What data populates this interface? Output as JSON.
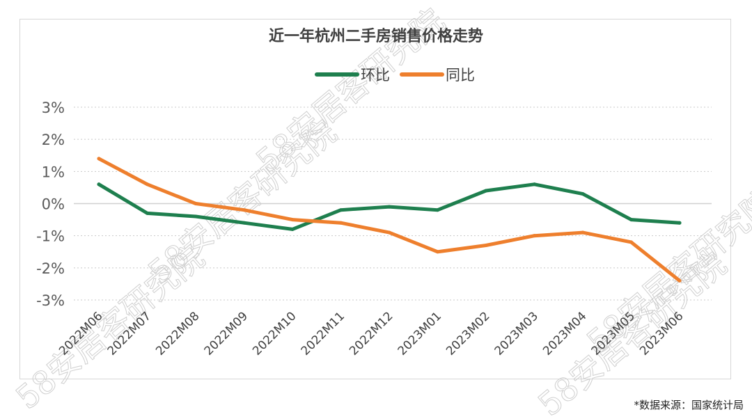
{
  "page": {
    "source_note": "*数据来源：国家统计局",
    "watermark": "58安居客研究院"
  },
  "chart_data": {
    "type": "line",
    "title": "近一年杭州二手房销售价格走势",
    "xlabel": "",
    "ylabel": "",
    "categories": [
      "2022M06",
      "2022M07",
      "2022M08",
      "2022M09",
      "2022M10",
      "2022M11",
      "2022M12",
      "2023M01",
      "2023M02",
      "2023M03",
      "2023M04",
      "2023M05",
      "2023M06"
    ],
    "y_ticks": [
      "3%",
      "2%",
      "1%",
      "0%",
      "-1%",
      "-2%",
      "-3%"
    ],
    "ylim": [
      -3,
      3
    ],
    "grid": "horizontal dotted",
    "legend_position": "top-center",
    "series": [
      {
        "name": "环比",
        "color": "#1e7f4e",
        "values": [
          0.6,
          -0.3,
          -0.4,
          -0.6,
          -0.8,
          -0.2,
          -0.1,
          -0.2,
          0.4,
          0.6,
          0.3,
          -0.5,
          -0.6
        ]
      },
      {
        "name": "同比",
        "color": "#ee7f2d",
        "values": [
          1.4,
          0.6,
          0.0,
          -0.2,
          -0.5,
          -0.6,
          -0.9,
          -1.5,
          -1.3,
          -1.0,
          -0.9,
          -1.2,
          -2.4
        ]
      }
    ]
  }
}
